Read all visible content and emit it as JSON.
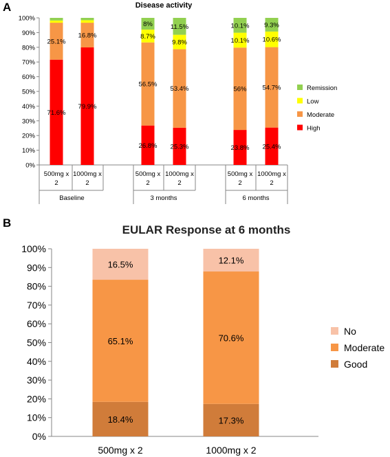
{
  "chart_data": [
    {
      "panel": "A",
      "type": "bar",
      "stacked": true,
      "title": "Disease activity",
      "ylim": [
        0,
        100
      ],
      "ytick_labels": [
        "0%",
        "10%",
        "20%",
        "30%",
        "40%",
        "50%",
        "60%",
        "70%",
        "80%",
        "90%",
        "100%"
      ],
      "categories": [
        "500mg x 2",
        "1000mg x 2",
        "500mg x 2",
        "1000mg x 2",
        "500mg x 2",
        "1000mg x 2"
      ],
      "groups": [
        {
          "label": "Baseline",
          "members": [
            0,
            1
          ]
        },
        {
          "label": "3 months",
          "members": [
            2,
            3
          ]
        },
        {
          "label": "6 months",
          "members": [
            4,
            5
          ]
        }
      ],
      "series": [
        {
          "name": "High",
          "color": "#ff0000",
          "values": [
            71.6,
            79.9,
            26.8,
            25.3,
            23.8,
            25.4
          ],
          "labels": [
            "71.6%",
            "79.9%",
            "26.8%",
            "25.3%",
            "23.8%",
            "25.4%"
          ]
        },
        {
          "name": "Moderate",
          "color": "#f79646",
          "values": [
            25.1,
            16.8,
            56.5,
            53.4,
            56.0,
            54.7
          ],
          "labels": [
            "25.1%",
            "16.8%",
            "56.5%",
            "53.4%",
            "56%",
            "54.7%"
          ]
        },
        {
          "name": "Low",
          "color": "#ffff00",
          "values": [
            1.5,
            1.7,
            8.7,
            9.8,
            10.1,
            10.6
          ],
          "labels": [
            "",
            "",
            "8.7%",
            "9.8%",
            "10.1%",
            "10.6%"
          ]
        },
        {
          "name": "Remission",
          "color": "#92d050",
          "values": [
            1.8,
            1.6,
            8.0,
            11.5,
            10.1,
            9.3
          ],
          "labels": [
            "",
            "",
            "8%",
            "11.5%",
            "10.1%",
            "9.3%"
          ]
        }
      ],
      "legend_order": [
        "Remission",
        "Low",
        "Moderate",
        "High"
      ],
      "legend_position": "right",
      "grid": false
    },
    {
      "panel": "B",
      "type": "bar",
      "stacked": true,
      "title": "EULAR Response at 6 months",
      "ylim": [
        0,
        100
      ],
      "ytick_labels": [
        "0%",
        "10%",
        "20%",
        "30%",
        "40%",
        "50%",
        "60%",
        "70%",
        "80%",
        "90%",
        "100%"
      ],
      "categories": [
        "500mg x 2",
        "1000mg x 2"
      ],
      "series": [
        {
          "name": "Good",
          "color": "#d07c3a",
          "values": [
            18.4,
            17.3
          ],
          "labels": [
            "18.4%",
            "17.3%"
          ]
        },
        {
          "name": "Moderate",
          "color": "#f79646",
          "values": [
            65.1,
            70.6
          ],
          "labels": [
            "65.1%",
            "70.6%"
          ]
        },
        {
          "name": "No",
          "color": "#f8c2a8",
          "values": [
            16.5,
            12.1
          ],
          "labels": [
            "16.5%",
            "12.1%"
          ]
        }
      ],
      "legend_order": [
        "No",
        "Moderate",
        "Good"
      ],
      "legend_position": "right",
      "grid": false
    }
  ]
}
